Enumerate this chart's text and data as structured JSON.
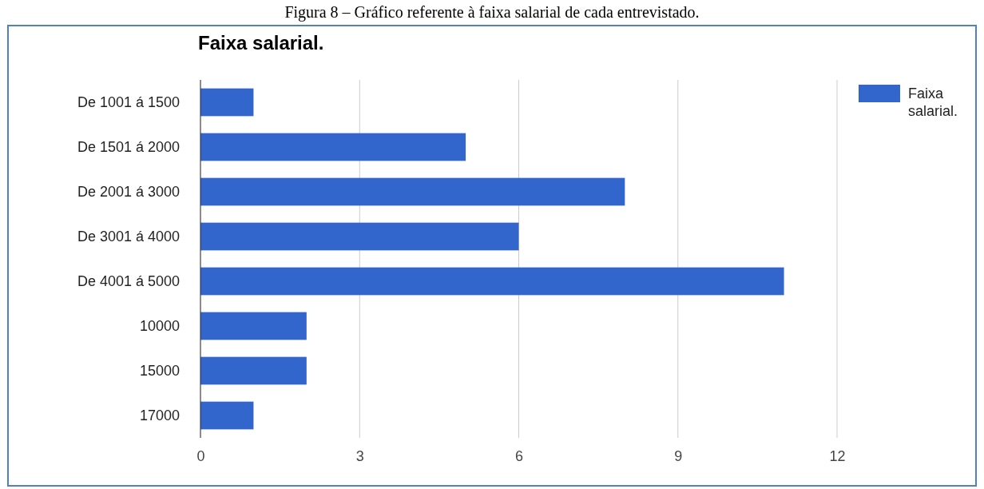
{
  "chart_data": {
    "type": "bar",
    "orientation": "horizontal",
    "title": "Faixa salarial.",
    "annotations": [
      "Figura 8 – Gráfico referente à faixa salarial de cada entrevistado."
    ],
    "categories": [
      "De 1001 á 1500",
      "De 1501 á 2000",
      "De 2001 á 3000",
      "De 3001 á 4000",
      "De 4001 á 5000",
      "10000",
      "15000",
      "17000"
    ],
    "series": [
      {
        "name": "Faixa salarial.",
        "color": "#3366cc",
        "values": [
          1,
          5,
          8,
          6,
          11,
          2,
          2,
          1
        ]
      }
    ],
    "xlim": [
      0,
      12
    ],
    "xticks": [
      0,
      3,
      6,
      9,
      12
    ],
    "grid": "x",
    "legend": "top right"
  }
}
